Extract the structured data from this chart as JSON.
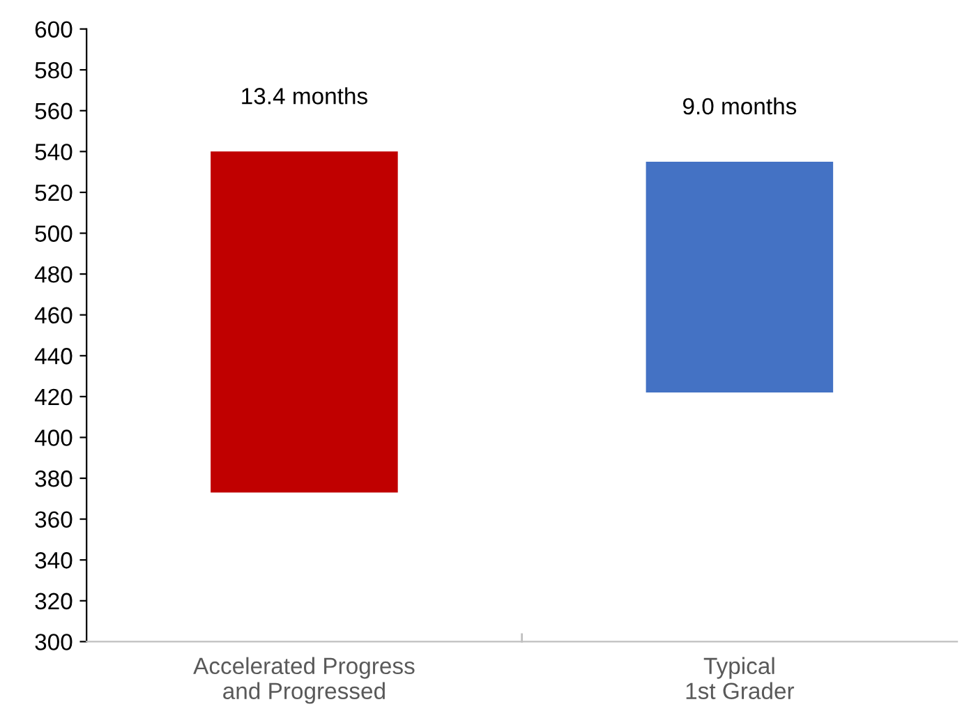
{
  "chart_data": {
    "type": "bar",
    "categories": [
      "Accelerated Progress\nand Progressed",
      "Typical\n1st Grader"
    ],
    "base": [
      373,
      422
    ],
    "values": [
      167,
      113
    ],
    "colors": [
      "#c00000",
      "#4472c4"
    ],
    "ylim": [
      300,
      600
    ],
    "yticks": [
      300,
      320,
      340,
      360,
      380,
      400,
      420,
      440,
      460,
      480,
      500,
      520,
      540,
      560,
      580,
      600
    ],
    "grid": false,
    "legend": false,
    "annotations": [
      {
        "text": "13.4 months",
        "x": "Accelerated Progress\nand Progressed",
        "y": 540
      },
      {
        "text": "9.0 months",
        "x": "Typical\n1st Grader",
        "y": 535
      }
    ]
  }
}
